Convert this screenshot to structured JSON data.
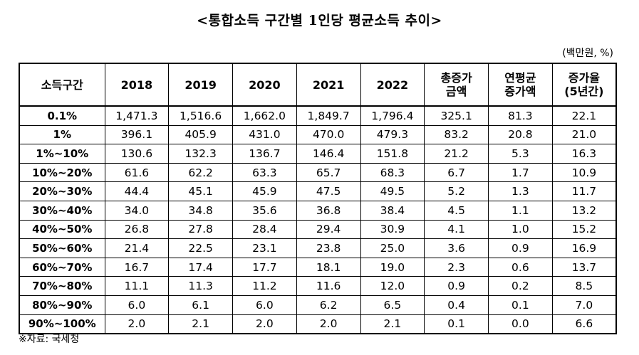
{
  "title": "<통합소득 구간별 1인당 평균소득 추이>",
  "unit": "(백만원, %)",
  "source": "※자료: 국세청",
  "table": {
    "headers": [
      "소득구간",
      "2018",
      "2019",
      "2020",
      "2021",
      "2022",
      "총증가\n금액",
      "연평균\n증가액",
      "증가율\n(5년간)"
    ],
    "rows": [
      [
        "0.1%",
        "1,471.3",
        "1,516.6",
        "1,662.0",
        "1,849.7",
        "1,796.4",
        "325.1",
        "81.3",
        "22.1"
      ],
      [
        "1%",
        "396.1",
        "405.9",
        "431.0",
        "470.0",
        "479.3",
        "83.2",
        "20.8",
        "21.0"
      ],
      [
        "1%~10%",
        "130.6",
        "132.3",
        "136.7",
        "146.4",
        "151.8",
        "21.2",
        "5.3",
        "16.3"
      ],
      [
        "10%~20%",
        "61.6",
        "62.2",
        "63.3",
        "65.7",
        "68.3",
        "6.7",
        "1.7",
        "10.9"
      ],
      [
        "20%~30%",
        "44.4",
        "45.1",
        "45.9",
        "47.5",
        "49.5",
        "5.2",
        "1.3",
        "11.7"
      ],
      [
        "30%~40%",
        "34.0",
        "34.8",
        "35.6",
        "36.8",
        "38.4",
        "4.5",
        "1.1",
        "13.2"
      ],
      [
        "40%~50%",
        "26.8",
        "27.8",
        "28.4",
        "29.4",
        "30.9",
        "4.1",
        "1.0",
        "15.2"
      ],
      [
        "50%~60%",
        "21.4",
        "22.5",
        "23.1",
        "23.8",
        "25.0",
        "3.6",
        "0.9",
        "16.9"
      ],
      [
        "60%~70%",
        "16.7",
        "17.4",
        "17.7",
        "18.1",
        "19.0",
        "2.3",
        "0.6",
        "13.7"
      ],
      [
        "70%~80%",
        "11.1",
        "11.3",
        "11.2",
        "11.6",
        "12.0",
        "0.9",
        "0.2",
        "8.5"
      ],
      [
        "80%~90%",
        "6.0",
        "6.1",
        "6.0",
        "6.2",
        "6.5",
        "0.4",
        "0.1",
        "7.0"
      ],
      [
        "90%~100%",
        "2.0",
        "2.1",
        "2.0",
        "2.0",
        "2.1",
        "0.1",
        "0.0",
        "6.6"
      ]
    ]
  }
}
